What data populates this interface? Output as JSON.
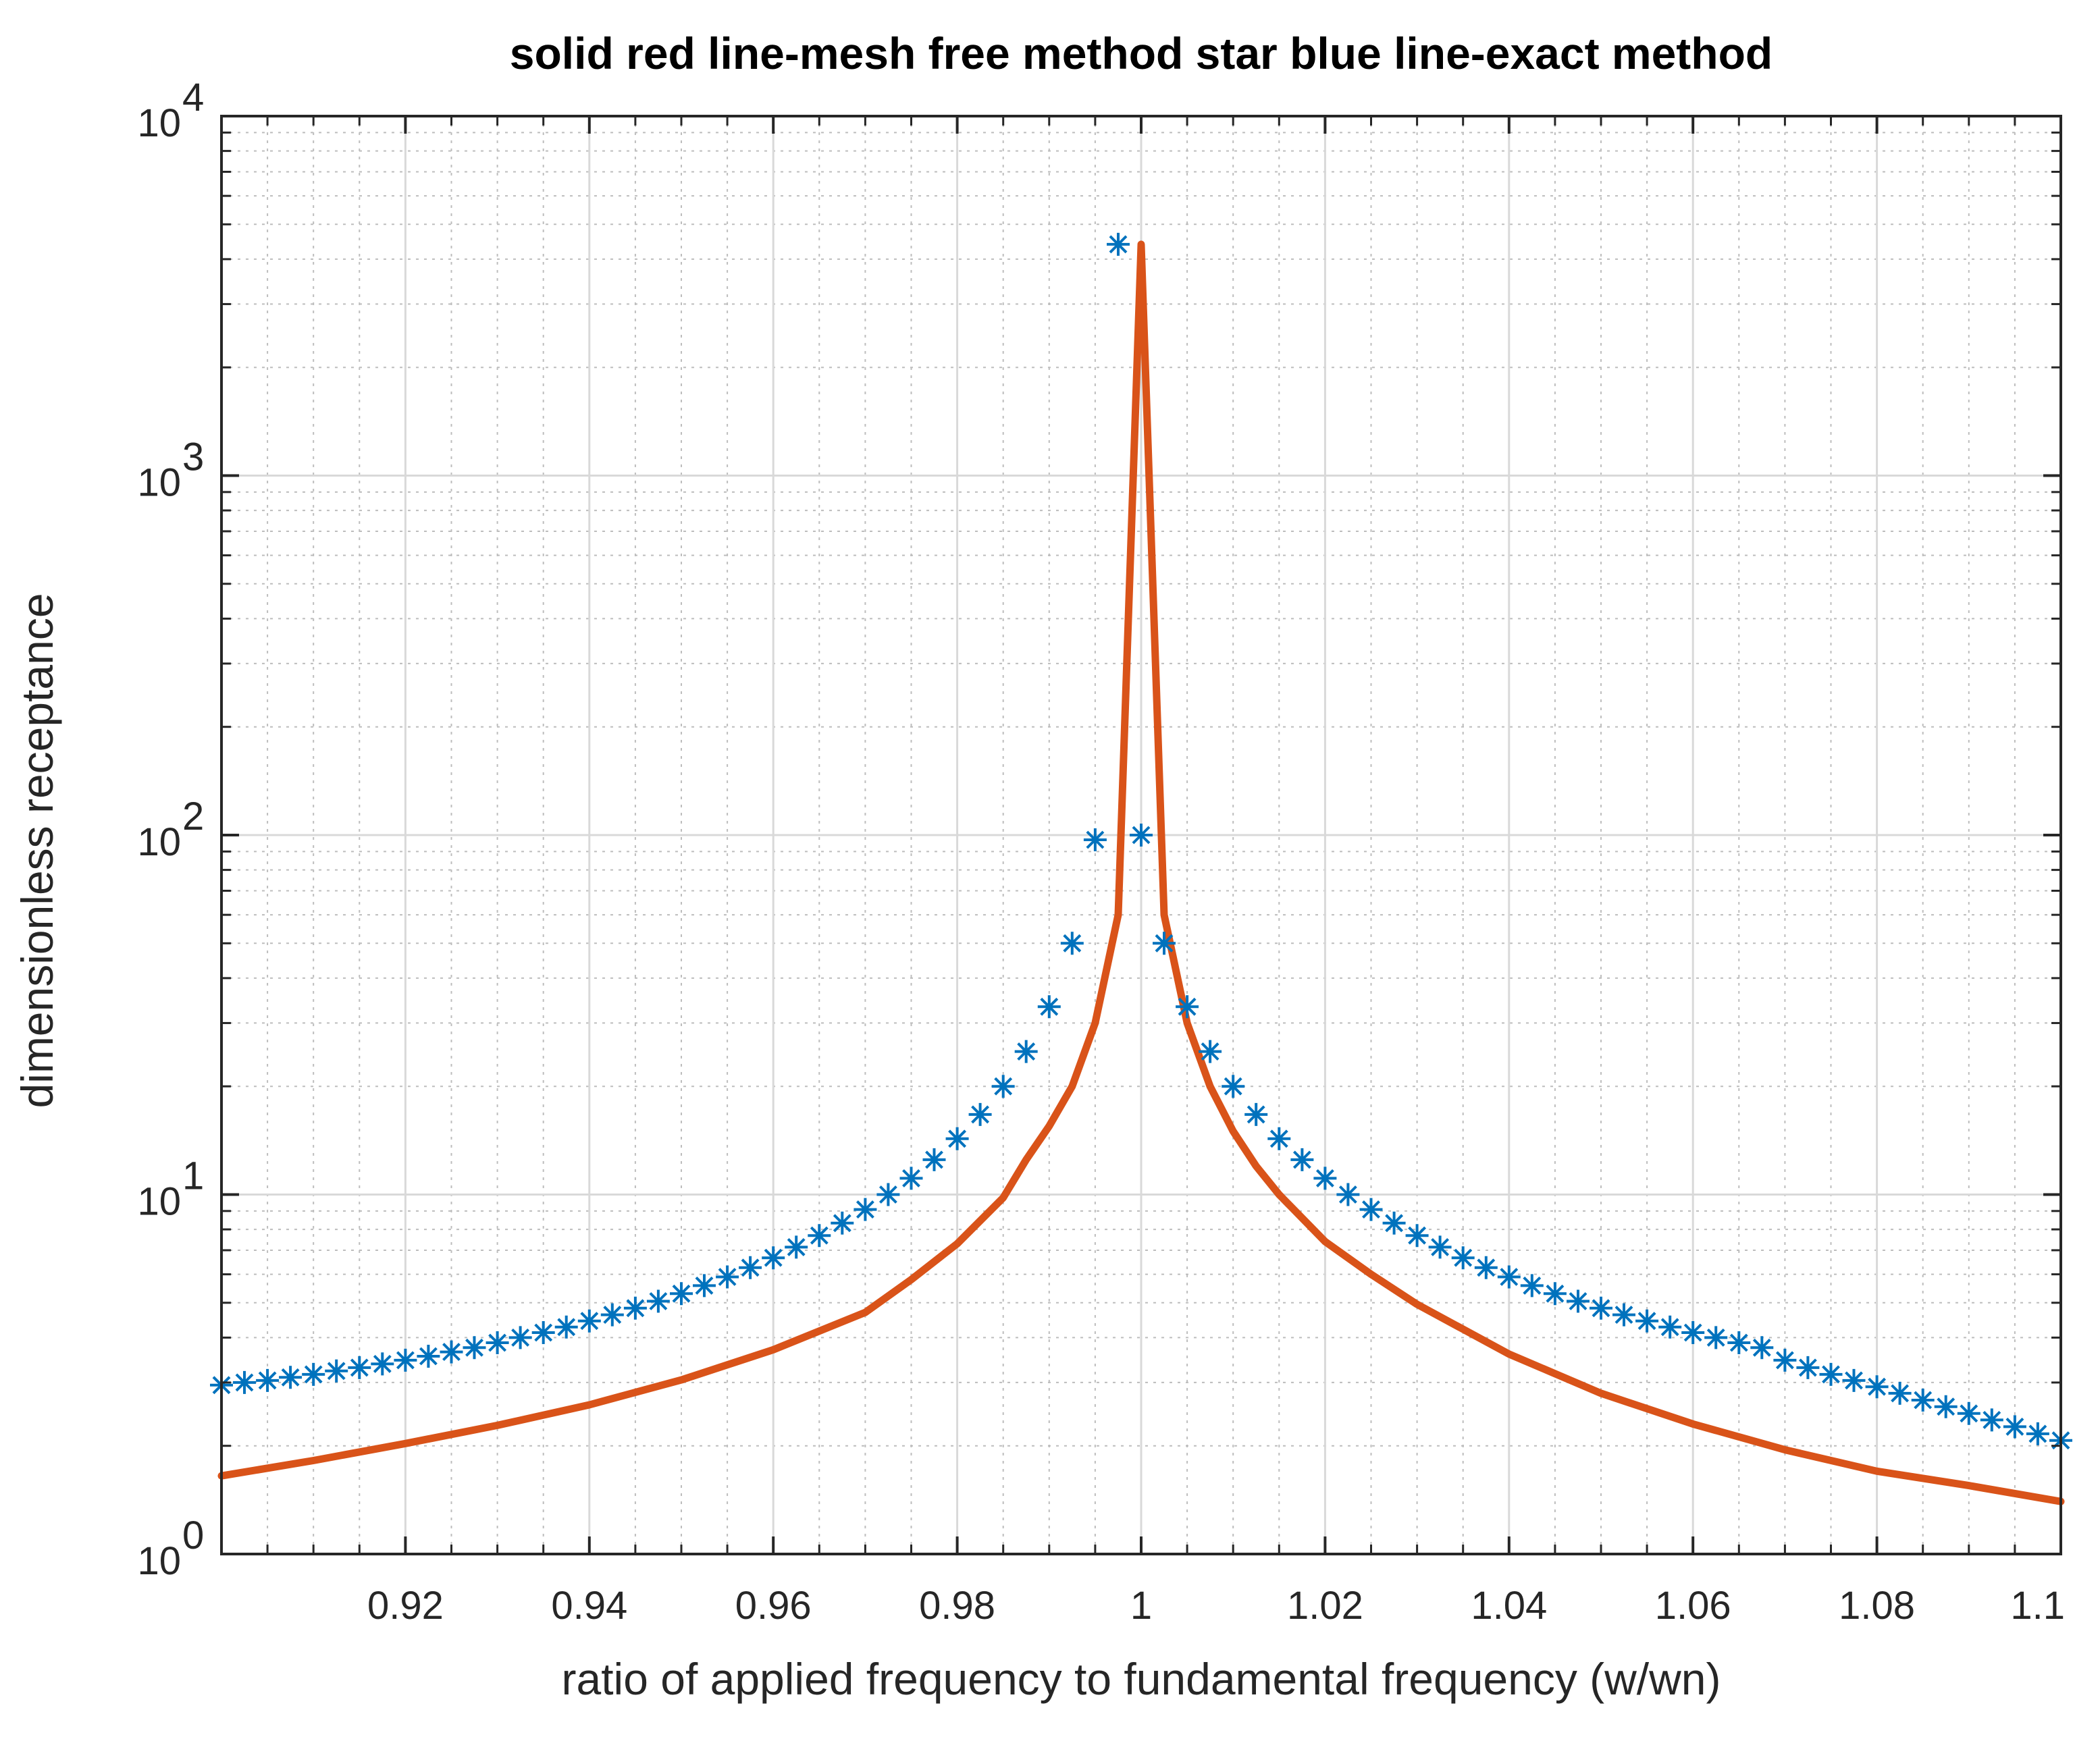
{
  "chart_data": {
    "type": "line",
    "title": "solid red line-mesh free method star blue line-exact method",
    "xlabel": "ratio of applied frequency to fundamental  frequency (w/wn)",
    "ylabel": "dimensionless receptance",
    "xlim": [
      0.9,
      1.1
    ],
    "ylim": [
      1,
      10000
    ],
    "yscale": "log",
    "grid": true,
    "minor_grid": true,
    "x_ticks": [
      0.92,
      0.94,
      0.96,
      0.98,
      1,
      1.02,
      1.04,
      1.06,
      1.08,
      1.1
    ],
    "x_tick_labels": [
      "0.92",
      "0.94",
      "0.96",
      "0.98",
      "1",
      "1.02",
      "1.04",
      "1.06",
      "1.08",
      "1.1"
    ],
    "y_ticks": [
      1,
      10,
      100,
      1000,
      10000
    ],
    "y_tick_labels": [
      {
        "base": "10",
        "exp": "0"
      },
      {
        "base": "10",
        "exp": "1"
      },
      {
        "base": "10",
        "exp": "2"
      },
      {
        "base": "10",
        "exp": "3"
      },
      {
        "base": "10",
        "exp": "4"
      }
    ],
    "series": [
      {
        "name": "mesh free method",
        "style": "solid line",
        "color": "#d95319",
        "x": [
          0.9,
          0.91,
          0.92,
          0.93,
          0.94,
          0.95,
          0.96,
          0.97,
          0.975,
          0.98,
          0.985,
          0.9875,
          0.99,
          0.9925,
          0.995,
          0.9975,
          1.0,
          1.0025,
          1.005,
          1.0075,
          1.01,
          1.0125,
          1.015,
          1.02,
          1.025,
          1.03,
          1.04,
          1.05,
          1.06,
          1.07,
          1.08,
          1.09,
          1.1
        ],
        "y": [
          1.65,
          1.82,
          2.03,
          2.28,
          2.6,
          3.05,
          3.7,
          4.7,
          5.8,
          7.3,
          9.8,
          12.5,
          15.5,
          20,
          30,
          60,
          4400,
          60,
          30,
          20,
          15,
          12,
          10,
          7.4,
          6.0,
          4.95,
          3.6,
          2.8,
          2.3,
          1.95,
          1.7,
          1.55,
          1.4
        ]
      },
      {
        "name": "exact method",
        "style": "star markers",
        "color": "#0072bd",
        "x": [
          0.9,
          0.9025,
          0.905,
          0.9075,
          0.91,
          0.9125,
          0.915,
          0.9175,
          0.92,
          0.9225,
          0.925,
          0.9275,
          0.93,
          0.9325,
          0.935,
          0.9375,
          0.94,
          0.9425,
          0.945,
          0.9475,
          0.95,
          0.9525,
          0.955,
          0.9575,
          0.96,
          0.9625,
          0.965,
          0.9675,
          0.97,
          0.9725,
          0.975,
          0.9775,
          0.98,
          0.9825,
          0.985,
          0.9875,
          0.99,
          0.9925,
          0.995,
          0.9975,
          1.0,
          1.0025,
          1.005,
          1.0075,
          1.01,
          1.0125,
          1.015,
          1.0175,
          1.02,
          1.0225,
          1.025,
          1.0275,
          1.03,
          1.0325,
          1.035,
          1.0375,
          1.04,
          1.0425,
          1.045,
          1.0475,
          1.05,
          1.0525,
          1.055,
          1.0575,
          1.06,
          1.0625,
          1.065,
          1.0675,
          1.07,
          1.0725,
          1.075,
          1.0775,
          1.08,
          1.0825,
          1.085,
          1.0875,
          1.09,
          1.0925,
          1.095,
          1.0975,
          1.1
        ],
        "y": [
          2.95,
          3.0,
          3.04,
          3.1,
          3.16,
          3.23,
          3.3,
          3.38,
          3.46,
          3.55,
          3.65,
          3.75,
          3.87,
          4.0,
          4.13,
          4.28,
          4.45,
          4.63,
          4.83,
          5.05,
          5.3,
          5.58,
          5.9,
          6.26,
          6.67,
          7.14,
          7.69,
          8.33,
          9.09,
          10.0,
          11.1,
          12.5,
          14.3,
          16.7,
          20.0,
          25.0,
          33.3,
          50.0,
          97.0,
          4400,
          100.0,
          50.0,
          33.3,
          25.0,
          20.0,
          16.7,
          14.3,
          12.5,
          11.1,
          10.0,
          9.09,
          8.33,
          7.69,
          7.14,
          6.67,
          6.26,
          5.9,
          5.58,
          5.3,
          5.05,
          4.83,
          4.63,
          4.45,
          4.28,
          4.13,
          4.0,
          3.87,
          3.75,
          3.46,
          3.3,
          3.16,
          3.04,
          2.92,
          2.8,
          2.68,
          2.57,
          2.46,
          2.36,
          2.26,
          2.16,
          2.07
        ]
      }
    ]
  }
}
